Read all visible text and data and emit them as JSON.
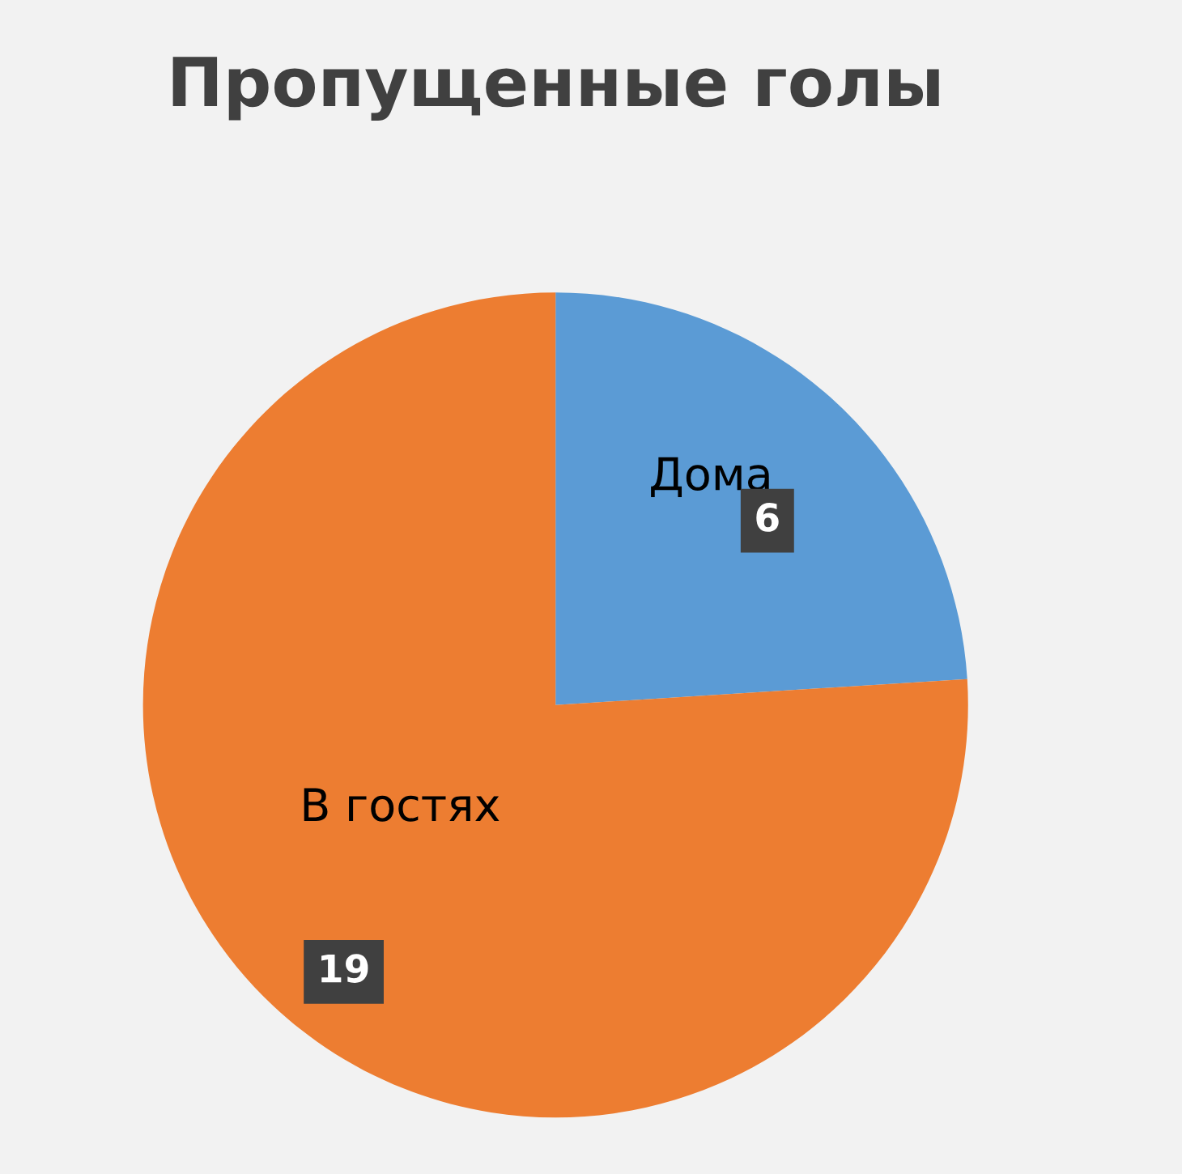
{
  "chart_data": {
    "type": "pie",
    "title": "Пропущенные голы",
    "categories": [
      "Дома",
      "В гостях"
    ],
    "values": [
      6,
      19
    ],
    "colors": [
      "#5b9bd5",
      "#ed7d31"
    ],
    "data_labels": true
  }
}
